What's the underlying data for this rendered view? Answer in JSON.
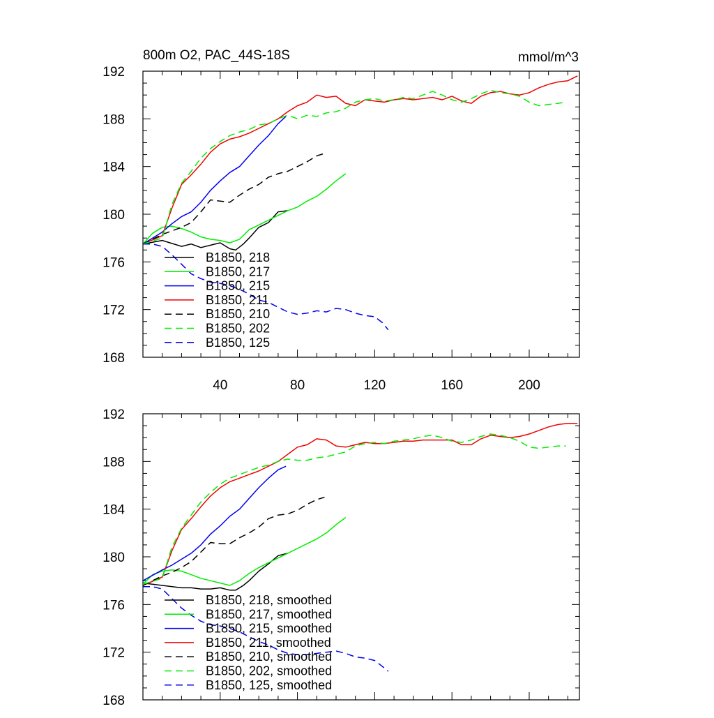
{
  "chart_data": [
    {
      "type": "line",
      "title": "800m O2, PAC_44S-18S",
      "units": "mmol/m^3",
      "xlim": [
        0,
        226
      ],
      "ylim": [
        168,
        192
      ],
      "x_ticks": [
        40,
        80,
        120,
        160,
        200
      ],
      "y_ticks": [
        168,
        172,
        176,
        180,
        184,
        188,
        192
      ],
      "legend_position": "bottom-left",
      "series": [
        {
          "name": "B1850, 218",
          "color": "#000000",
          "dash": "solid",
          "x": [
            0,
            10,
            20,
            25,
            30,
            35,
            40,
            45,
            48,
            52,
            55,
            60,
            65,
            70,
            75
          ],
          "y": [
            177.5,
            177.8,
            177.3,
            177.5,
            177.2,
            177.4,
            177.6,
            177.1,
            177.0,
            177.5,
            178.0,
            178.9,
            179.3,
            180.2,
            180.3
          ]
        },
        {
          "name": "B1850, 217",
          "color": "#00ee00",
          "dash": "solid",
          "x": [
            0,
            5,
            10,
            15,
            20,
            25,
            30,
            35,
            40,
            45,
            50,
            55,
            60,
            65,
            70,
            75,
            80,
            85,
            90,
            95,
            100,
            105
          ],
          "y": [
            177.5,
            178.4,
            178.9,
            179.0,
            178.8,
            178.5,
            178.1,
            177.9,
            177.8,
            177.6,
            177.9,
            178.7,
            179.1,
            179.5,
            179.9,
            180.3,
            180.6,
            181.1,
            181.5,
            182.1,
            182.8,
            183.4
          ]
        },
        {
          "name": "B1850, 215",
          "color": "#0000ee",
          "dash": "solid",
          "x": [
            0,
            10,
            15,
            20,
            25,
            30,
            35,
            40,
            45,
            50,
            55,
            60,
            65,
            70,
            74
          ],
          "y": [
            177.5,
            178.5,
            179.2,
            179.8,
            180.2,
            181.0,
            182.0,
            182.8,
            183.5,
            184.0,
            184.9,
            185.8,
            186.6,
            187.6,
            188.2
          ]
        },
        {
          "name": "B1850, 211",
          "color": "#ee0000",
          "dash": "solid",
          "x": [
            0,
            10,
            15,
            20,
            25,
            30,
            35,
            40,
            45,
            50,
            55,
            60,
            65,
            70,
            75,
            80,
            85,
            90,
            95,
            100,
            105,
            110,
            115,
            120,
            125,
            130,
            135,
            140,
            145,
            150,
            155,
            160,
            165,
            170,
            175,
            180,
            185,
            190,
            195,
            200,
            205,
            210,
            215,
            220,
            225
          ],
          "y": [
            177.5,
            178.2,
            180.5,
            182.5,
            183.3,
            184.2,
            185.2,
            185.9,
            186.3,
            186.5,
            186.8,
            187.2,
            187.6,
            188.0,
            188.6,
            189.1,
            189.4,
            190.0,
            189.8,
            189.9,
            189.3,
            189.1,
            189.6,
            189.5,
            189.4,
            189.6,
            189.7,
            189.6,
            189.7,
            189.8,
            189.6,
            189.9,
            189.5,
            189.3,
            189.9,
            190.2,
            190.3,
            190.1,
            190.0,
            190.2,
            190.6,
            190.9,
            191.1,
            191.2,
            191.6
          ]
        },
        {
          "name": "B1850, 210",
          "color": "#000000",
          "dash": "dash",
          "x": [
            0,
            10,
            15,
            20,
            25,
            30,
            35,
            40,
            45,
            50,
            55,
            60,
            65,
            70,
            75,
            80,
            85,
            90,
            94
          ],
          "y": [
            177.5,
            178.3,
            178.6,
            178.9,
            179.3,
            180.2,
            181.2,
            181.1,
            181.0,
            181.6,
            182.1,
            182.5,
            183.1,
            183.4,
            183.6,
            184.0,
            184.4,
            184.9,
            185.1
          ]
        },
        {
          "name": "B1850, 202",
          "color": "#00ee00",
          "dash": "dash",
          "x": [
            0,
            10,
            15,
            20,
            25,
            30,
            35,
            40,
            45,
            50,
            55,
            60,
            65,
            70,
            75,
            80,
            85,
            90,
            95,
            100,
            105,
            110,
            115,
            120,
            125,
            130,
            135,
            140,
            145,
            150,
            155,
            160,
            165,
            170,
            175,
            180,
            185,
            190,
            195,
            200,
            205,
            210,
            215,
            219
          ],
          "y": [
            177.5,
            178.0,
            180.8,
            182.6,
            183.6,
            184.7,
            185.5,
            186.1,
            186.6,
            186.9,
            187.1,
            187.5,
            187.6,
            188.0,
            188.3,
            188.0,
            188.3,
            188.2,
            188.5,
            188.6,
            188.9,
            189.4,
            189.6,
            189.7,
            189.5,
            189.6,
            189.8,
            189.7,
            190.0,
            190.3,
            190.0,
            189.6,
            189.4,
            189.7,
            190.1,
            190.4,
            190.2,
            190.1,
            189.9,
            189.4,
            189.1,
            189.2,
            189.3,
            189.4
          ]
        },
        {
          "name": "B1850, 125",
          "color": "#0000ee",
          "dash": "dash",
          "x": [
            0,
            5,
            10,
            15,
            20,
            25,
            30,
            35,
            40,
            45,
            50,
            55,
            60,
            65,
            70,
            75,
            80,
            85,
            90,
            95,
            100,
            105,
            110,
            115,
            120,
            124,
            127
          ],
          "y": [
            177.5,
            177.5,
            177.3,
            176.6,
            175.8,
            175.0,
            174.6,
            174.3,
            174.2,
            174.0,
            173.7,
            173.3,
            172.8,
            172.6,
            172.2,
            171.8,
            171.6,
            171.7,
            171.9,
            171.8,
            172.1,
            172.0,
            171.7,
            171.5,
            171.4,
            170.9,
            170.3
          ]
        }
      ]
    },
    {
      "type": "line",
      "title": "",
      "xlim": [
        0,
        226
      ],
      "ylim": [
        168,
        192
      ],
      "x_ticks": [],
      "y_ticks": [
        168,
        172,
        176,
        180,
        184,
        188,
        192
      ],
      "legend_position": "bottom-left",
      "series": [
        {
          "name": "B1850, 218, smoothed",
          "color": "#000000",
          "dash": "solid",
          "x": [
            0,
            10,
            20,
            25,
            30,
            35,
            40,
            45,
            48,
            52,
            55,
            60,
            65,
            70,
            75
          ],
          "y": [
            177.8,
            177.6,
            177.4,
            177.4,
            177.3,
            177.3,
            177.4,
            177.2,
            177.2,
            177.6,
            178.0,
            178.8,
            179.4,
            180.1,
            180.3
          ]
        },
        {
          "name": "B1850, 217, smoothed",
          "color": "#00ee00",
          "dash": "solid",
          "x": [
            0,
            5,
            10,
            15,
            20,
            25,
            30,
            35,
            40,
            45,
            50,
            55,
            60,
            65,
            70,
            75,
            80,
            85,
            90,
            95,
            100,
            105
          ],
          "y": [
            177.7,
            178.5,
            178.8,
            178.9,
            178.8,
            178.5,
            178.2,
            178.0,
            177.8,
            177.6,
            178.0,
            178.6,
            179.1,
            179.5,
            179.9,
            180.3,
            180.7,
            181.1,
            181.5,
            182.0,
            182.7,
            183.3
          ]
        },
        {
          "name": "B1850, 215, smoothed",
          "color": "#0000ee",
          "dash": "solid",
          "x": [
            0,
            10,
            15,
            20,
            25,
            30,
            35,
            40,
            45,
            50,
            55,
            60,
            65,
            70,
            74
          ],
          "y": [
            178.0,
            178.9,
            179.3,
            179.8,
            180.3,
            181.0,
            181.9,
            182.6,
            183.4,
            184.0,
            184.9,
            185.8,
            186.6,
            187.3,
            187.6
          ]
        },
        {
          "name": "B1850, 211, smoothed",
          "color": "#ee0000",
          "dash": "solid",
          "x": [
            0,
            10,
            15,
            20,
            25,
            30,
            35,
            40,
            45,
            50,
            55,
            60,
            65,
            70,
            75,
            80,
            85,
            90,
            95,
            100,
            105,
            110,
            115,
            120,
            125,
            130,
            135,
            140,
            145,
            150,
            155,
            160,
            165,
            170,
            175,
            180,
            185,
            190,
            195,
            200,
            205,
            210,
            215,
            220,
            225
          ],
          "y": [
            177.6,
            178.3,
            180.5,
            182.3,
            183.2,
            184.2,
            185.1,
            185.8,
            186.3,
            186.6,
            186.9,
            187.2,
            187.6,
            188.0,
            188.6,
            189.2,
            189.4,
            189.9,
            189.8,
            189.3,
            189.2,
            189.4,
            189.6,
            189.5,
            189.5,
            189.6,
            189.7,
            189.7,
            189.8,
            189.8,
            189.8,
            189.8,
            189.4,
            189.4,
            189.9,
            190.2,
            190.1,
            190.0,
            190.1,
            190.3,
            190.6,
            190.9,
            191.1,
            191.2,
            191.2
          ]
        },
        {
          "name": "B1850, 210, smoothed",
          "color": "#000000",
          "dash": "dash",
          "x": [
            0,
            10,
            15,
            20,
            25,
            30,
            35,
            40,
            45,
            50,
            55,
            60,
            65,
            70,
            75,
            80,
            85,
            90,
            94
          ],
          "y": [
            177.6,
            178.4,
            178.7,
            179.1,
            179.6,
            180.4,
            181.2,
            181.1,
            181.1,
            181.6,
            182.0,
            182.5,
            183.2,
            183.5,
            183.6,
            183.9,
            184.4,
            184.8,
            185.0
          ]
        },
        {
          "name": "B1850, 202, smoothed",
          "color": "#00ee00",
          "dash": "dash",
          "x": [
            0,
            10,
            15,
            20,
            25,
            30,
            35,
            40,
            45,
            50,
            55,
            60,
            65,
            70,
            75,
            80,
            85,
            90,
            95,
            100,
            105,
            110,
            115,
            120,
            125,
            130,
            135,
            140,
            145,
            150,
            155,
            160,
            165,
            170,
            175,
            180,
            185,
            190,
            195,
            200,
            205,
            210,
            215,
            219
          ],
          "y": [
            177.7,
            178.2,
            180.8,
            182.4,
            183.5,
            184.6,
            185.4,
            186.1,
            186.6,
            186.9,
            187.2,
            187.5,
            187.7,
            188.0,
            188.2,
            188.1,
            188.1,
            188.3,
            188.4,
            188.6,
            188.8,
            189.3,
            189.5,
            189.6,
            189.5,
            189.7,
            189.8,
            189.9,
            190.1,
            190.2,
            190.0,
            189.7,
            189.6,
            189.8,
            190.1,
            190.3,
            190.2,
            190.0,
            189.7,
            189.2,
            189.1,
            189.2,
            189.3,
            189.3
          ]
        },
        {
          "name": "B1850, 125, smoothed",
          "color": "#0000ee",
          "dash": "dash",
          "x": [
            0,
            5,
            10,
            15,
            20,
            25,
            30,
            35,
            40,
            45,
            50,
            55,
            60,
            65,
            70,
            75,
            80,
            85,
            90,
            95,
            100,
            105,
            110,
            115,
            120,
            124,
            127
          ],
          "y": [
            177.5,
            177.5,
            177.3,
            176.5,
            175.7,
            175.1,
            174.6,
            174.3,
            174.2,
            174.0,
            173.7,
            173.3,
            172.9,
            172.6,
            172.2,
            171.9,
            171.8,
            171.8,
            171.9,
            172.0,
            172.1,
            171.9,
            171.6,
            171.5,
            171.3,
            170.8,
            170.4
          ]
        }
      ]
    }
  ]
}
